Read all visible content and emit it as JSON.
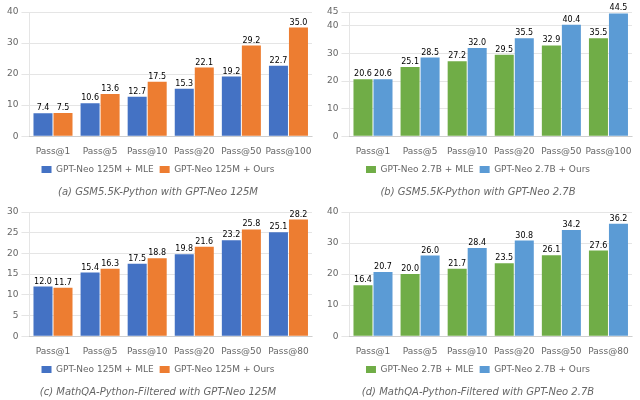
{
  "chart_data": [
    {
      "type": "bar",
      "title": "(a) GSM5.5K-Python with GPT-Neo 125M",
      "categories": [
        "Pass@1",
        "Pass@5",
        "Pass@10",
        "Pass@20",
        "Pass@50",
        "Pass@100"
      ],
      "series": [
        {
          "name": "GPT-Neo 125M + MLE",
          "color": "#4472C4",
          "values": [
            7.4,
            10.6,
            12.7,
            15.3,
            19.2,
            22.7
          ],
          "value_labels": [
            "7.4",
            "10.6",
            "12.7",
            "15.3",
            "19.2",
            "22.7"
          ]
        },
        {
          "name": "GPT-Neo 125M + Ours",
          "color": "#ED7D31",
          "values": [
            7.5,
            13.6,
            17.5,
            22.1,
            29.2,
            35.0
          ],
          "value_labels": [
            "7.5",
            "13.6",
            "17.5",
            "22.1",
            "29.2",
            "35.0"
          ]
        }
      ],
      "ylim": [
        0,
        40
      ],
      "yticks": [
        0,
        10,
        20,
        30,
        40
      ],
      "grid": true,
      "legend": "bottom",
      "data_labels": true
    },
    {
      "type": "bar",
      "title": "(b) GSM5.5K-Python with GPT-Neo 2.7B",
      "categories": [
        "Pass@1",
        "Pass@5",
        "Pass@10",
        "Pass@20",
        "Pass@50",
        "Pass@100"
      ],
      "series": [
        {
          "name": "GPT-Neo 2.7B + MLE",
          "color": "#70AD47",
          "values": [
            20.6,
            25.1,
            27.2,
            29.5,
            32.9,
            35.5
          ],
          "value_labels": [
            "20.6",
            "25.1",
            "27.2",
            "29.5",
            "32.9",
            "35.5"
          ]
        },
        {
          "name": "GPT-Neo 2.7B + Ours",
          "color": "#5B9BD5",
          "values": [
            20.6,
            28.5,
            32.0,
            35.5,
            40.4,
            44.5
          ],
          "value_labels": [
            "20.6",
            "28.5",
            "32.0",
            "35.5",
            "40.4",
            "44.5"
          ]
        }
      ],
      "ylim": [
        0,
        45
      ],
      "yticks": [
        0,
        10,
        20,
        30,
        40,
        45
      ],
      "grid": true,
      "legend": "bottom",
      "data_labels": true
    },
    {
      "type": "bar",
      "title": "(c) MathQA-Python-Filtered with GPT-Neo 125M",
      "categories": [
        "Pass@1",
        "Pass@5",
        "Pass@10",
        "Pass@20",
        "Pass@50",
        "Pass@80"
      ],
      "series": [
        {
          "name": "GPT-Neo 125M + MLE",
          "color": "#4472C4",
          "values": [
            12.0,
            15.4,
            17.5,
            19.8,
            23.2,
            25.1
          ],
          "value_labels": [
            "12.0",
            "15.4",
            "17.5",
            "19.8",
            "23.2",
            "25.1"
          ]
        },
        {
          "name": "GPT-Neo 125M + Ours",
          "color": "#ED7D31",
          "values": [
            11.7,
            16.3,
            18.8,
            21.6,
            25.8,
            28.2
          ],
          "value_labels": [
            "11.7",
            "16.3",
            "18.8",
            "21.6",
            "25.8",
            "28.2"
          ]
        }
      ],
      "ylim": [
        0,
        30
      ],
      "yticks": [
        0,
        5,
        10,
        15,
        20,
        25,
        30
      ],
      "grid": true,
      "legend": "bottom",
      "data_labels": true
    },
    {
      "type": "bar",
      "title": "(d) MathQA-Python-Filtered with GPT-Neo 2.7B",
      "categories": [
        "Pass@1",
        "Pass@5",
        "Pass@10",
        "Pass@20",
        "Pass@50",
        "Pass@80"
      ],
      "series": [
        {
          "name": "GPT-Neo 2.7B + MLE",
          "color": "#70AD47",
          "values": [
            16.4,
            20.0,
            21.7,
            23.5,
            26.1,
            27.6
          ],
          "value_labels": [
            "16.4",
            "20.0",
            "21.7",
            "23.5",
            "26.1",
            "27.6"
          ]
        },
        {
          "name": "GPT-Neo 2.7B + Ours",
          "color": "#5B9BD5",
          "values": [
            20.7,
            26.0,
            28.4,
            30.8,
            34.2,
            36.2
          ],
          "value_labels": [
            "20.7",
            "26.0",
            "28.4",
            "30.8",
            "34.2",
            "36.2"
          ]
        }
      ],
      "ylim": [
        0,
        40
      ],
      "yticks": [
        0,
        10,
        20,
        30,
        40
      ],
      "grid": true,
      "legend": "bottom",
      "data_labels": true
    }
  ]
}
